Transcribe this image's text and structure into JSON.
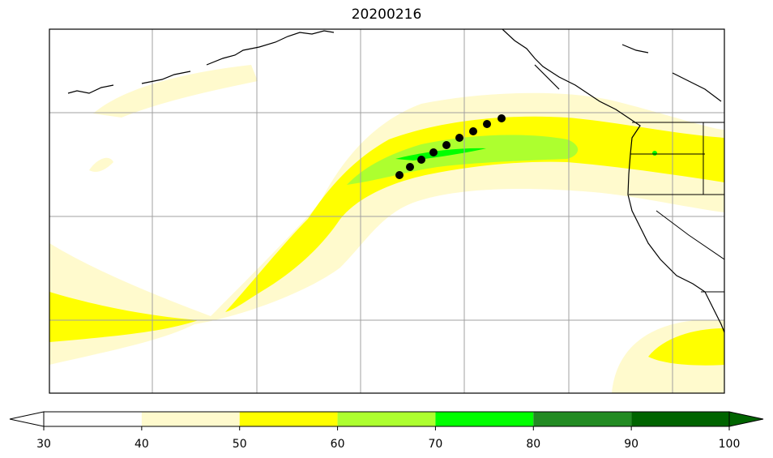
{
  "title": "20200216",
  "colorbar": {
    "ticks": [
      "30",
      "40",
      "50",
      "60",
      "70",
      "80",
      "90",
      "100"
    ],
    "bins": [
      {
        "from": 30,
        "to": 40,
        "color": "#ffffff"
      },
      {
        "from": 40,
        "to": 50,
        "color": "#fffacd"
      },
      {
        "from": 50,
        "to": 60,
        "color": "#ffff00"
      },
      {
        "from": 60,
        "to": 70,
        "color": "#adff2f"
      },
      {
        "from": 70,
        "to": 80,
        "color": "#00ff00"
      },
      {
        "from": 80,
        "to": 90,
        "color": "#228b22"
      },
      {
        "from": 90,
        "to": 100,
        "color": "#006400"
      }
    ],
    "extend": "both",
    "under_color": "#ffffff",
    "over_color": "#006400"
  },
  "map": {
    "region": "North Pacific / US West Coast",
    "gridlines": true,
    "coastlines": true,
    "state_borders": true,
    "track_points_count": 10
  }
}
